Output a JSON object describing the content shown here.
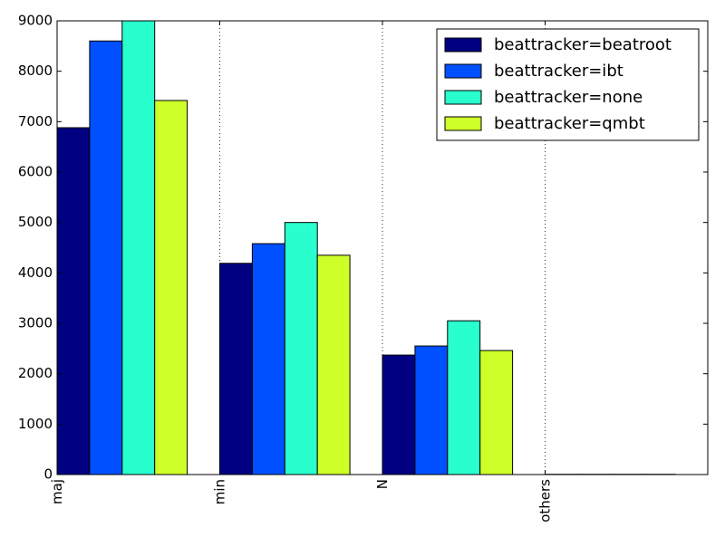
{
  "chart_data": {
    "type": "bar",
    "title": "",
    "xlabel": "",
    "ylabel": "",
    "categories": [
      "maj",
      "min",
      "N",
      "others"
    ],
    "series": [
      {
        "name": "beattracker=beatroot",
        "color": "#000080",
        "values": [
          6880,
          4190,
          2370,
          5
        ]
      },
      {
        "name": "beattracker=ibt",
        "color": "#0050ff",
        "values": [
          8600,
          4580,
          2550,
          5
        ]
      },
      {
        "name": "beattracker=none",
        "color": "#29ffce",
        "values": [
          9000,
          5000,
          3050,
          5
        ]
      },
      {
        "name": "beattracker=qmbt",
        "color": "#ceff29",
        "values": [
          7420,
          4350,
          2460,
          5
        ]
      }
    ],
    "ylim": [
      0,
      9000
    ],
    "yticks": [
      0,
      1000,
      2000,
      3000,
      4000,
      5000,
      6000,
      7000,
      8000,
      9000
    ],
    "grid": "vertical dotted at category positions",
    "legend": "top-right"
  }
}
